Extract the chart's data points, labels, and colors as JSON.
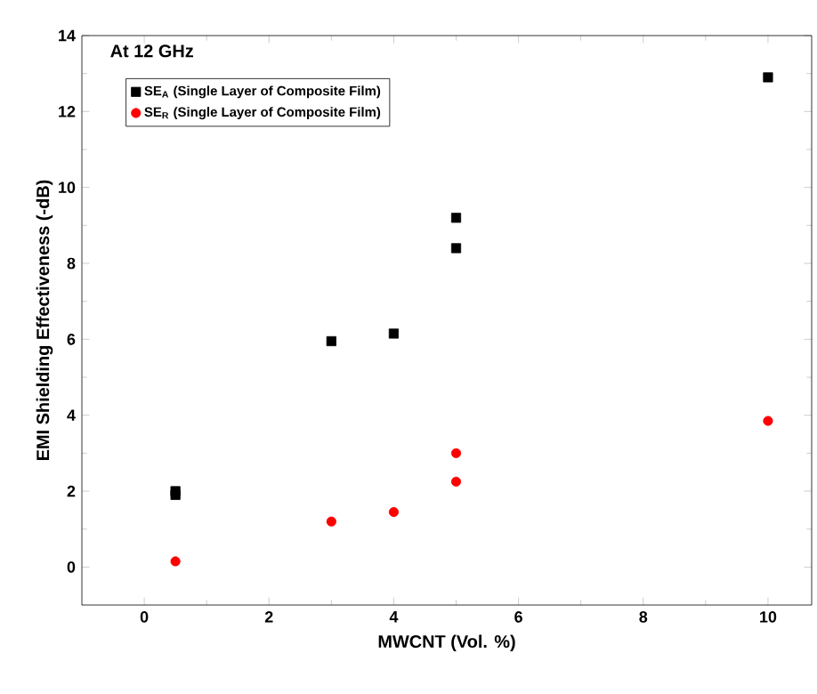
{
  "chart_data": {
    "type": "scatter",
    "annotations": [
      "At 12 GHz"
    ],
    "xlabel": "MWCNT (Vol. %)",
    "ylabel": "EMI Shielding Effectiveness (-dB)",
    "xlim": [
      -1,
      10.7
    ],
    "ylim": [
      -1,
      14
    ],
    "xticks": [
      0,
      2,
      4,
      6,
      8,
      10
    ],
    "yticks": [
      0,
      2,
      4,
      6,
      8,
      10,
      12,
      14
    ],
    "grid": false,
    "legend": "top left",
    "series": [
      {
        "name": "SE$_{A}$ (Single Layer of Composite Film)",
        "color": "#000000",
        "marker": "square",
        "x": [
          0.5,
          0.5,
          3,
          4,
          5,
          5,
          10
        ],
        "values": [
          1.9,
          2.0,
          5.95,
          6.15,
          9.2,
          8.4,
          12.9
        ]
      },
      {
        "name": "SE$_{R}$ (Single Layer of Composite Film)",
        "color": "#ff0000",
        "marker": "circle",
        "x": [
          0.5,
          3,
          4,
          5,
          5,
          10
        ],
        "values": [
          0.15,
          1.2,
          1.45,
          3.0,
          2.25,
          3.85
        ]
      }
    ]
  }
}
